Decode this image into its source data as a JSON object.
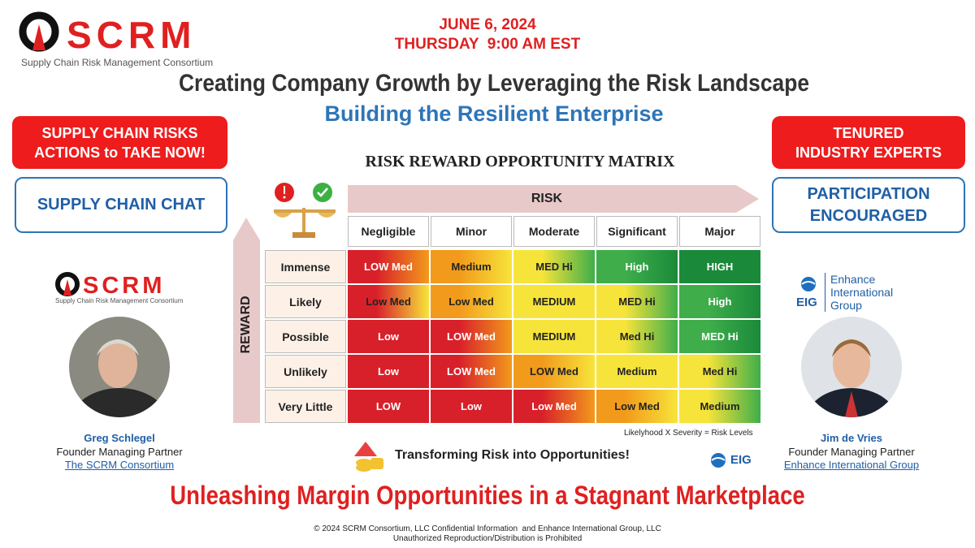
{
  "header": {
    "logo": {
      "name": "SCRM",
      "tagline": "Supply Chain Risk Management Consortium"
    },
    "date": "JUNE 6, 2024",
    "time": "THURSDAY  9:00 AM EST",
    "title": "Creating Company Growth by Leveraging the Risk Landscape",
    "subtitle": "Building the Resilient Enterprise"
  },
  "left_panel": {
    "callout": [
      "SUPPLY CHAIN RISKS",
      "ACTIONS to TAKE NOW!"
    ],
    "button": "SUPPLY CHAIN CHAT",
    "speaker": {
      "name": "Greg Schlegel",
      "role": "Founder Managing Partner",
      "org": "The SCRM Consortium"
    }
  },
  "right_panel": {
    "callout": [
      "TENURED",
      "INDUSTRY EXPERTS"
    ],
    "button": [
      "PARTICIPATION",
      "ENCOURAGED"
    ],
    "logo": {
      "mark": "EIG",
      "name": [
        "Enhance",
        "International",
        "Group"
      ]
    },
    "speaker": {
      "name": "Jim de Vries",
      "role": "Founder Managing Partner",
      "org": "Enhance International Group"
    }
  },
  "matrix": {
    "title": "RISK REWARD OPPORTUNITY MATRIX",
    "x_axis": "RISK",
    "y_axis": "REWARD",
    "columns": [
      "Negligible",
      "Minor",
      "Moderate",
      "Significant",
      "Major"
    ],
    "rows": [
      "Immense",
      "Likely",
      "Possible",
      "Unlikely",
      "Very Little"
    ],
    "cells": [
      [
        "LOW Med",
        "Medium",
        "MED Hi",
        "High",
        "HIGH"
      ],
      [
        "Low Med",
        "Low Med",
        "MEDIUM",
        "MED Hi",
        "High"
      ],
      [
        "Low",
        "LOW Med",
        "MEDIUM",
        "Med Hi",
        "MED Hi"
      ],
      [
        "Low",
        "LOW Med",
        "LOW Med",
        "Medium",
        "Med Hi"
      ],
      [
        "LOW",
        "Low",
        "Low Med",
        "Low Med",
        "Medium"
      ]
    ],
    "note": "Likelyhood X Severity = Risk Levels"
  },
  "tagline": "Transforming Risk into Opportunities!",
  "footer": {
    "headline": "Unleashing Margin Opportunities in a Stagnant Marketplace",
    "copyright": "© 2024 SCRM Consortium, LLC Confidential Information  and Enhance International Group, LLC",
    "notice": "Unauthorized Reproduction/Distribution is Prohibited"
  }
}
